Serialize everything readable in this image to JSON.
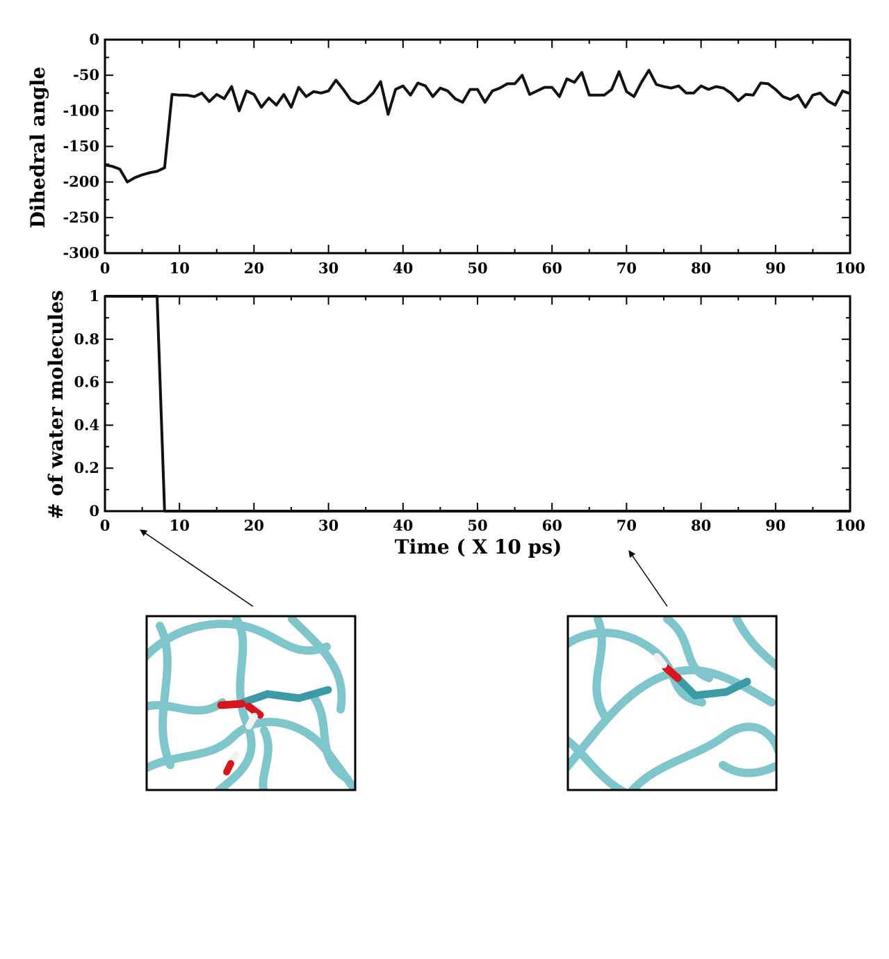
{
  "chart_data": [
    {
      "type": "line",
      "title": "",
      "xlabel": "",
      "ylabel": "Dihedral angle",
      "xlim": [
        0,
        100
      ],
      "ylim": [
        -300,
        0
      ],
      "grid": false,
      "xticks": [
        0,
        10,
        20,
        30,
        40,
        50,
        60,
        70,
        80,
        90,
        100
      ],
      "xtick_labels": [
        "0",
        "10",
        "20",
        "30",
        "40",
        "50",
        "60",
        "70",
        "80",
        "90",
        "100"
      ],
      "yticks": [
        0,
        -50,
        -100,
        -150,
        -200,
        -250,
        -300
      ],
      "ytick_labels": [
        "0",
        "-50",
        "-100",
        "-150",
        "-200",
        "-250",
        "-300"
      ],
      "series": [
        {
          "color": "#111111",
          "x": [
            0,
            1,
            2,
            3,
            4,
            5,
            6,
            7,
            8,
            9,
            10,
            11,
            12,
            13,
            14,
            15,
            16,
            17,
            18,
            19,
            20,
            21,
            22,
            23,
            24,
            25,
            26,
            27,
            28,
            29,
            30,
            31,
            32,
            33,
            34,
            35,
            36,
            37,
            38,
            39,
            40,
            41,
            42,
            43,
            44,
            45,
            46,
            47,
            48,
            49,
            50,
            51,
            52,
            53,
            54,
            55,
            56,
            57,
            58,
            59,
            60,
            61,
            62,
            63,
            64,
            65,
            66,
            67,
            68,
            69,
            70,
            71,
            72,
            73,
            74,
            75,
            76,
            77,
            78,
            79,
            80,
            81,
            82,
            83,
            84,
            85,
            86,
            87,
            88,
            89,
            90,
            91,
            92,
            93,
            94,
            95,
            96,
            97,
            98,
            99,
            100
          ],
          "y": [
            -176,
            -178,
            -182,
            -200,
            -194,
            -190,
            -187,
            -185,
            -180,
            -77,
            -78,
            -78,
            -80,
            -75,
            -87,
            -77,
            -83,
            -66,
            -100,
            -72,
            -77,
            -95,
            -82,
            -92,
            -77,
            -95,
            -67,
            -80,
            -73,
            -75,
            -72,
            -57,
            -70,
            -85,
            -90,
            -85,
            -75,
            -59,
            -105,
            -70,
            -65,
            -78,
            -61,
            -65,
            -80,
            -68,
            -72,
            -83,
            -88,
            -70,
            -70,
            -88,
            -72,
            -68,
            -62,
            -62,
            -50,
            -77,
            -72,
            -67,
            -67,
            -80,
            -55,
            -60,
            -46,
            -78,
            -78,
            -78,
            -70,
            -45,
            -73,
            -80,
            -60,
            -43,
            -63,
            -66,
            -68,
            -65,
            -75,
            -75,
            -65,
            -70,
            -66,
            -68,
            -75,
            -86,
            -77,
            -78,
            -61,
            -62,
            -70,
            -80,
            -84,
            -78,
            -95,
            -78,
            -75,
            -86,
            -92,
            -72,
            -76
          ]
        }
      ]
    },
    {
      "type": "line",
      "title": "",
      "xlabel": "Time ( X 10 ps)",
      "ylabel": "# of water molecules",
      "xlim": [
        0,
        100
      ],
      "ylim": [
        0,
        1
      ],
      "grid": false,
      "xticks": [
        0,
        10,
        20,
        30,
        40,
        50,
        60,
        70,
        80,
        90,
        100
      ],
      "xtick_labels": [
        "0",
        "10",
        "20",
        "30",
        "40",
        "50",
        "60",
        "70",
        "80",
        "90",
        "100"
      ],
      "yticks": [
        0,
        0.2,
        0.4,
        0.6,
        0.8,
        1
      ],
      "ytick_labels": [
        "0",
        "0.2",
        "0.4",
        "0.6",
        "0.8",
        "1"
      ],
      "series": [
        {
          "color": "#111111",
          "x": [
            0,
            7,
            8,
            100
          ],
          "y": [
            1,
            1,
            0,
            0
          ]
        }
      ]
    }
  ],
  "insets": [
    {
      "description_icon": "molecular-snapshot-with-water-icon",
      "ribbon_color": "#5fb8c0",
      "carbon_color": "#3a9aa6",
      "oxygen_color": "#d8141c",
      "hydrogen_color": "#f2f2f2"
    },
    {
      "description_icon": "molecular-snapshot-without-water-icon",
      "ribbon_color": "#5fb8c0",
      "carbon_color": "#3a9aa6",
      "oxygen_color": "#d8141c",
      "hydrogen_color": "#f2f2f2"
    }
  ]
}
